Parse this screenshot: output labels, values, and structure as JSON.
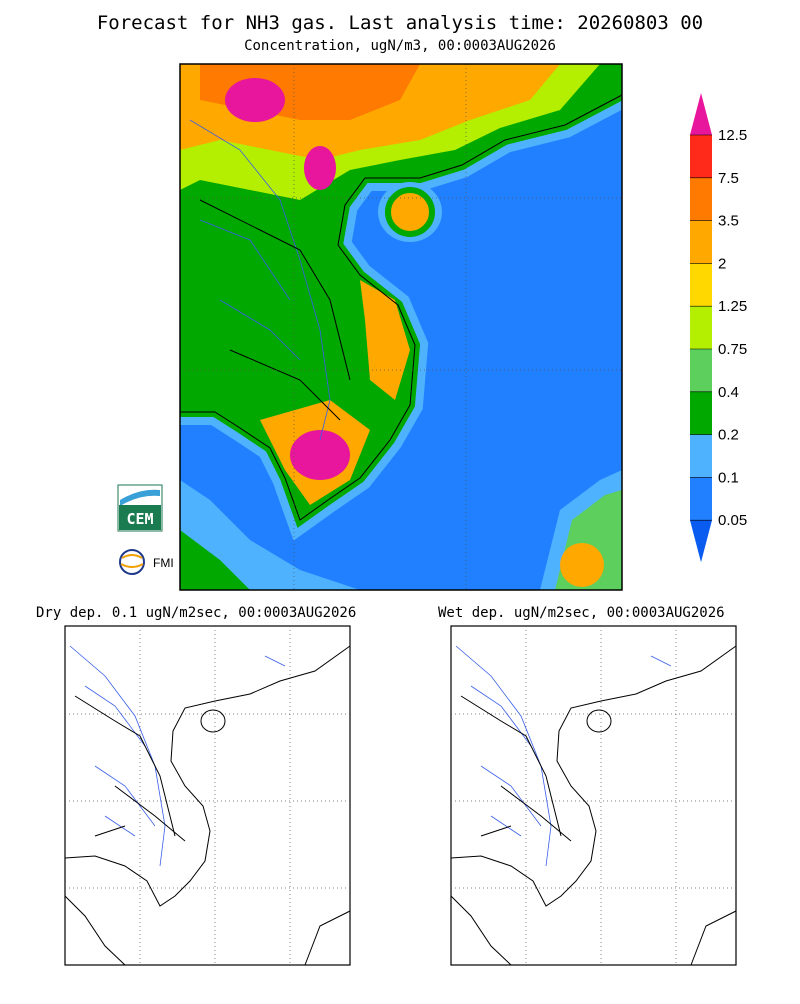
{
  "header": {
    "title": "Forecast for NH3 gas. Last analysis time: 20260803 00",
    "subtitle": "Concentration, ugN/m3, 00:0003AUG2026"
  },
  "colorbar": {
    "levels": [
      "12.5",
      "7.5",
      "3.5",
      "2",
      "1.25",
      "0.75",
      "0.4",
      "0.2",
      "0.1",
      "0.05"
    ],
    "colors": [
      "#e8169c",
      "#ff2a1a",
      "#ff7a00",
      "#ffa800",
      "#ffd800",
      "#b4ee00",
      "#5ccf5c",
      "#00a800",
      "#4fb2ff",
      "#2080ff",
      "#0a5cf0"
    ]
  },
  "logos": {
    "cem": "CEM",
    "fmi": "FMI"
  },
  "panels": [
    {
      "title": "Dry dep. 0.1 ugN/m2sec, 00:0003AUG2026"
    },
    {
      "title": "Wet dep. ugN/m2sec, 00:0003AUG2026"
    }
  ]
}
